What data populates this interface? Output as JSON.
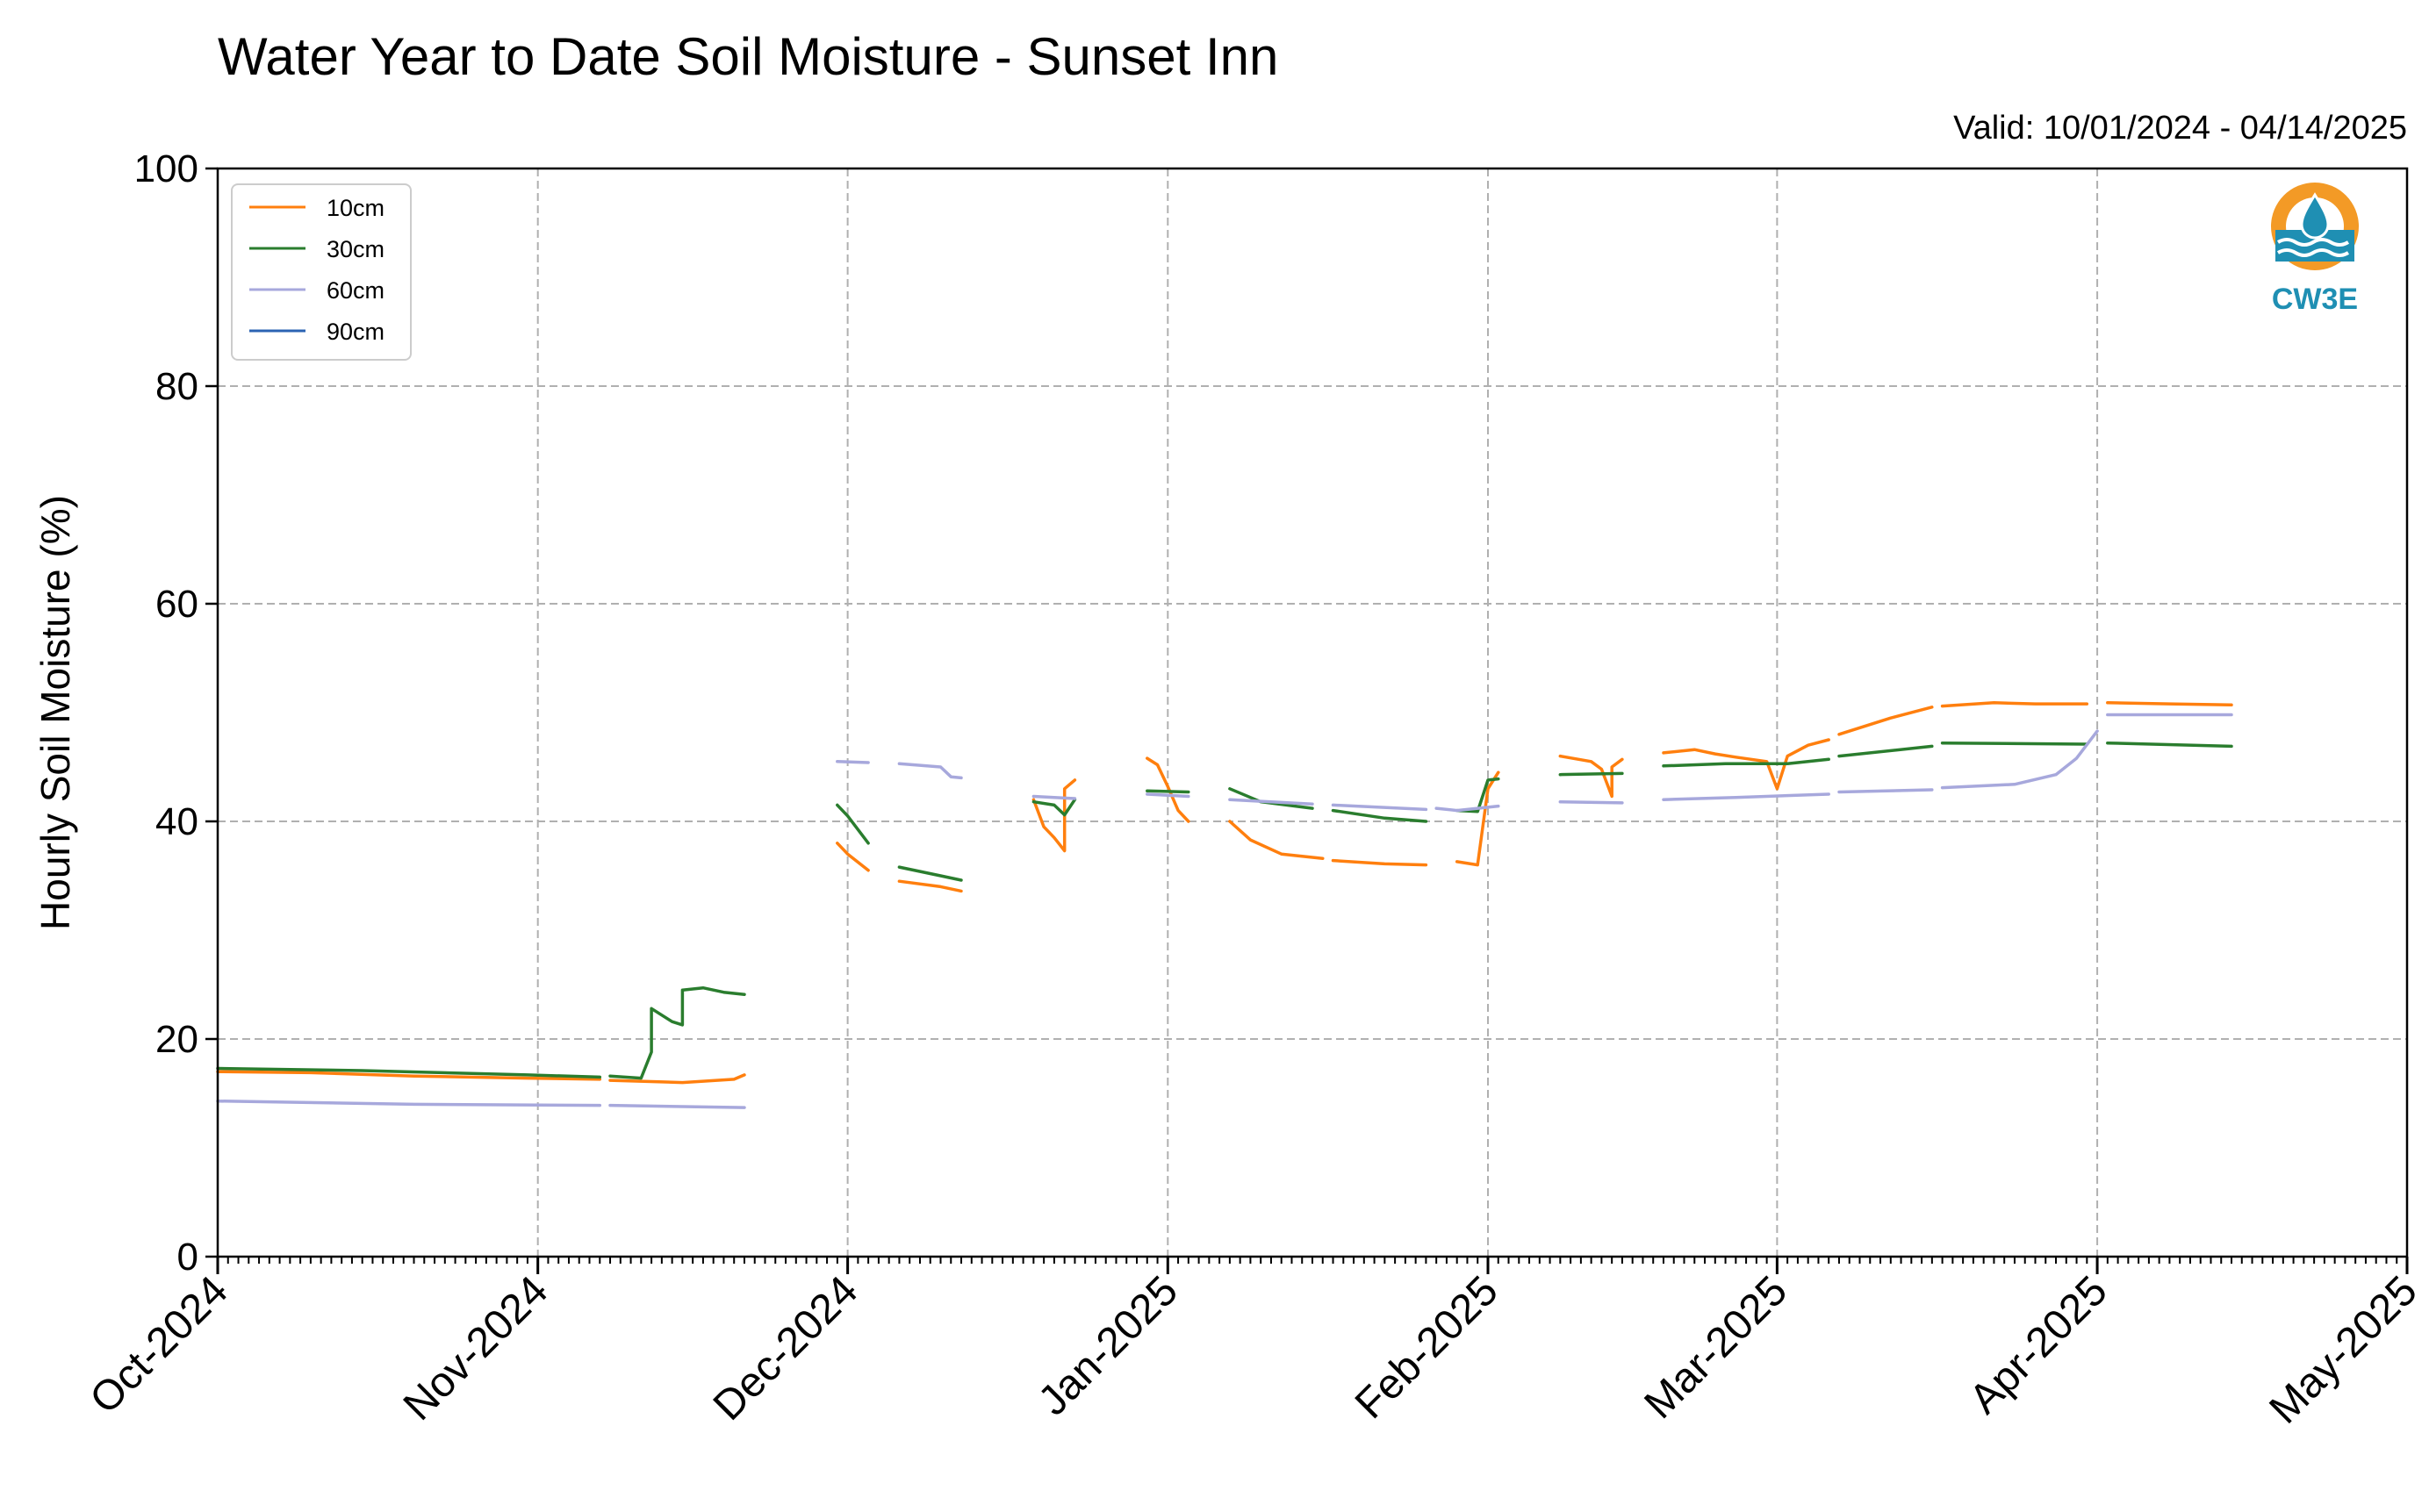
{
  "chart_data": {
    "type": "line",
    "title": "Water Year to Date Soil Moisture - Sunset Inn",
    "valid": "Valid: 10/01/2024 - 04/14/2025",
    "ylabel": "Hourly Soil Moisture (%)",
    "xlabel": "",
    "ylim": [
      0,
      100
    ],
    "xlim": [
      "2024-10-01",
      "2025-05-01"
    ],
    "y_ticks": [
      "0",
      "20",
      "40",
      "60",
      "80",
      "100"
    ],
    "x_ticks": [
      {
        "date": "2024-10-01",
        "label": "Oct-2024"
      },
      {
        "date": "2024-11-01",
        "label": "Nov-2024"
      },
      {
        "date": "2024-12-01",
        "label": "Dec-2024"
      },
      {
        "date": "2025-01-01",
        "label": "Jan-2025"
      },
      {
        "date": "2025-02-01",
        "label": "Feb-2025"
      },
      {
        "date": "2025-03-01",
        "label": "Mar-2025"
      },
      {
        "date": "2025-04-01",
        "label": "Apr-2025"
      },
      {
        "date": "2025-05-01",
        "label": "May-2025"
      }
    ],
    "grid": true,
    "legend_position": "top-left",
    "logo_text": "CW3E",
    "series": [
      {
        "name": "10cm",
        "color": "#ff7f0e",
        "segments": [
          [
            [
              "2024-10-01",
              17.0
            ],
            [
              "2024-10-10",
              16.9
            ],
            [
              "2024-10-20",
              16.6
            ],
            [
              "2024-10-31",
              16.4
            ],
            [
              "2024-11-07",
              16.3
            ]
          ],
          [
            [
              "2024-11-08",
              16.2
            ],
            [
              "2024-11-15",
              16.0
            ],
            [
              "2024-11-20",
              16.3
            ],
            [
              "2024-11-21",
              16.7
            ]
          ],
          [
            [
              "2024-11-30",
              38.0
            ],
            [
              "2024-12-01",
              37.0
            ],
            [
              "2024-12-03",
              35.5
            ]
          ],
          [
            [
              "2024-12-06",
              34.5
            ],
            [
              "2024-12-10",
              34.0
            ],
            [
              "2024-12-12",
              33.6
            ]
          ],
          [
            [
              "2024-12-19",
              42.0
            ],
            [
              "2024-12-20",
              39.5
            ],
            [
              "2024-12-21",
              38.5
            ],
            [
              "2024-12-22",
              37.3
            ],
            [
              "2024-12-22",
              43.0
            ],
            [
              "2024-12-23",
              43.8
            ]
          ],
          [
            [
              "2024-12-30",
              45.8
            ],
            [
              "2024-12-31",
              45.2
            ],
            [
              "2025-01-01",
              43.2
            ],
            [
              "2025-01-02",
              41.0
            ],
            [
              "2025-01-03",
              40.0
            ]
          ],
          [
            [
              "2025-01-07",
              40.0
            ],
            [
              "2025-01-09",
              38.3
            ],
            [
              "2025-01-12",
              37.0
            ],
            [
              "2025-01-16",
              36.6
            ]
          ],
          [
            [
              "2025-01-17",
              36.4
            ],
            [
              "2025-01-22",
              36.1
            ],
            [
              "2025-01-26",
              36.0
            ]
          ],
          [
            [
              "2025-01-29",
              36.3
            ],
            [
              "2025-01-31",
              36.0
            ],
            [
              "2025-02-01",
              43.0
            ],
            [
              "2025-02-02",
              44.5
            ]
          ],
          [
            [
              "2025-02-08",
              46.0
            ],
            [
              "2025-02-11",
              45.5
            ],
            [
              "2025-02-12",
              44.8
            ],
            [
              "2025-02-13",
              42.3
            ],
            [
              "2025-02-13",
              45.0
            ],
            [
              "2025-02-14",
              45.7
            ]
          ],
          [
            [
              "2025-02-18",
              46.3
            ],
            [
              "2025-02-21",
              46.6
            ],
            [
              "2025-02-23",
              46.2
            ],
            [
              "2025-02-25",
              45.9
            ],
            [
              "2025-02-28",
              45.5
            ],
            [
              "2025-03-01",
              43.0
            ],
            [
              "2025-03-02",
              46.0
            ],
            [
              "2025-03-04",
              47.0
            ],
            [
              "2025-03-06",
              47.5
            ]
          ],
          [
            [
              "2025-03-07",
              48.0
            ],
            [
              "2025-03-12",
              49.5
            ],
            [
              "2025-03-16",
              50.5
            ]
          ],
          [
            [
              "2025-03-17",
              50.6
            ],
            [
              "2025-03-22",
              50.9
            ],
            [
              "2025-03-26",
              50.8
            ],
            [
              "2025-03-31",
              50.8
            ]
          ],
          [
            [
              "2025-04-02",
              50.9
            ],
            [
              "2025-04-08",
              50.8
            ],
            [
              "2025-04-14",
              50.7
            ]
          ]
        ]
      },
      {
        "name": "30cm",
        "color": "#2a7d2e",
        "segments": [
          [
            [
              "2024-10-01",
              17.3
            ],
            [
              "2024-10-15",
              17.1
            ],
            [
              "2024-10-31",
              16.7
            ],
            [
              "2024-11-07",
              16.5
            ]
          ],
          [
            [
              "2024-11-08",
              16.6
            ],
            [
              "2024-11-11",
              16.4
            ],
            [
              "2024-11-12",
              18.8
            ],
            [
              "2024-11-12",
              22.8
            ],
            [
              "2024-11-14",
              21.6
            ],
            [
              "2024-11-15",
              21.3
            ],
            [
              "2024-11-15",
              24.5
            ],
            [
              "2024-11-17",
              24.7
            ],
            [
              "2024-11-19",
              24.3
            ],
            [
              "2024-11-21",
              24.1
            ]
          ],
          [
            [
              "2024-11-30",
              41.5
            ],
            [
              "2024-12-01",
              40.5
            ],
            [
              "2024-12-03",
              38.0
            ]
          ],
          [
            [
              "2024-12-06",
              35.8
            ],
            [
              "2024-12-10",
              35.0
            ],
            [
              "2024-12-12",
              34.6
            ]
          ],
          [
            [
              "2024-12-19",
              41.8
            ],
            [
              "2024-12-21",
              41.5
            ],
            [
              "2024-12-22",
              40.6
            ],
            [
              "2024-12-23",
              42.0
            ]
          ],
          [
            [
              "2024-12-30",
              42.8
            ],
            [
              "2025-01-03",
              42.7
            ]
          ],
          [
            [
              "2025-01-07",
              43.0
            ],
            [
              "2025-01-10",
              41.8
            ],
            [
              "2025-01-15",
              41.2
            ]
          ],
          [
            [
              "2025-01-17",
              41.0
            ],
            [
              "2025-01-22",
              40.3
            ],
            [
              "2025-01-26",
              40.0
            ]
          ],
          [
            [
              "2025-01-29",
              41.0
            ],
            [
              "2025-01-31",
              40.9
            ],
            [
              "2025-02-01",
              43.8
            ],
            [
              "2025-02-02",
              43.9
            ]
          ],
          [
            [
              "2025-02-08",
              44.3
            ],
            [
              "2025-02-14",
              44.4
            ]
          ],
          [
            [
              "2025-02-18",
              45.1
            ],
            [
              "2025-02-24",
              45.3
            ],
            [
              "2025-03-02",
              45.3
            ],
            [
              "2025-03-06",
              45.7
            ]
          ],
          [
            [
              "2025-03-07",
              46.0
            ],
            [
              "2025-03-16",
              46.9
            ]
          ],
          [
            [
              "2025-03-17",
              47.2
            ],
            [
              "2025-03-31",
              47.1
            ]
          ],
          [
            [
              "2025-04-02",
              47.2
            ],
            [
              "2025-04-14",
              46.9
            ]
          ]
        ]
      },
      {
        "name": "60cm",
        "color": "#a7a8dc",
        "segments": [
          [
            [
              "2024-10-01",
              14.3
            ],
            [
              "2024-10-20",
              14.0
            ],
            [
              "2024-11-07",
              13.9
            ]
          ],
          [
            [
              "2024-11-08",
              13.9
            ],
            [
              "2024-11-21",
              13.7
            ]
          ],
          [
            [
              "2024-11-30",
              45.5
            ],
            [
              "2024-12-03",
              45.4
            ]
          ],
          [
            [
              "2024-12-06",
              45.3
            ],
            [
              "2024-12-10",
              45.0
            ],
            [
              "2024-12-11",
              44.1
            ],
            [
              "2024-12-12",
              44.0
            ]
          ],
          [
            [
              "2024-12-19",
              42.3
            ],
            [
              "2024-12-23",
              42.1
            ]
          ],
          [
            [
              "2024-12-30",
              42.5
            ],
            [
              "2025-01-03",
              42.3
            ]
          ],
          [
            [
              "2025-01-07",
              42.0
            ],
            [
              "2025-01-15",
              41.6
            ]
          ],
          [
            [
              "2025-01-17",
              41.5
            ],
            [
              "2025-01-26",
              41.1
            ]
          ],
          [
            [
              "2025-01-27",
              41.2
            ],
            [
              "2025-01-29",
              41.0
            ],
            [
              "2025-02-02",
              41.4
            ]
          ],
          [
            [
              "2025-02-08",
              41.8
            ],
            [
              "2025-02-14",
              41.7
            ]
          ],
          [
            [
              "2025-02-18",
              42.0
            ],
            [
              "2025-02-25",
              42.2
            ],
            [
              "2025-03-06",
              42.5
            ]
          ],
          [
            [
              "2025-03-07",
              42.7
            ],
            [
              "2025-03-16",
              42.9
            ]
          ],
          [
            [
              "2025-03-17",
              43.1
            ],
            [
              "2025-03-24",
              43.4
            ],
            [
              "2025-03-28",
              44.3
            ],
            [
              "2025-03-30",
              45.8
            ],
            [
              "2025-04-01",
              48.3
            ]
          ],
          [
            [
              "2025-04-02",
              49.8
            ],
            [
              "2025-04-14",
              49.8
            ]
          ]
        ]
      },
      {
        "name": "90cm",
        "color": "#2b63b3",
        "segments": []
      }
    ]
  }
}
